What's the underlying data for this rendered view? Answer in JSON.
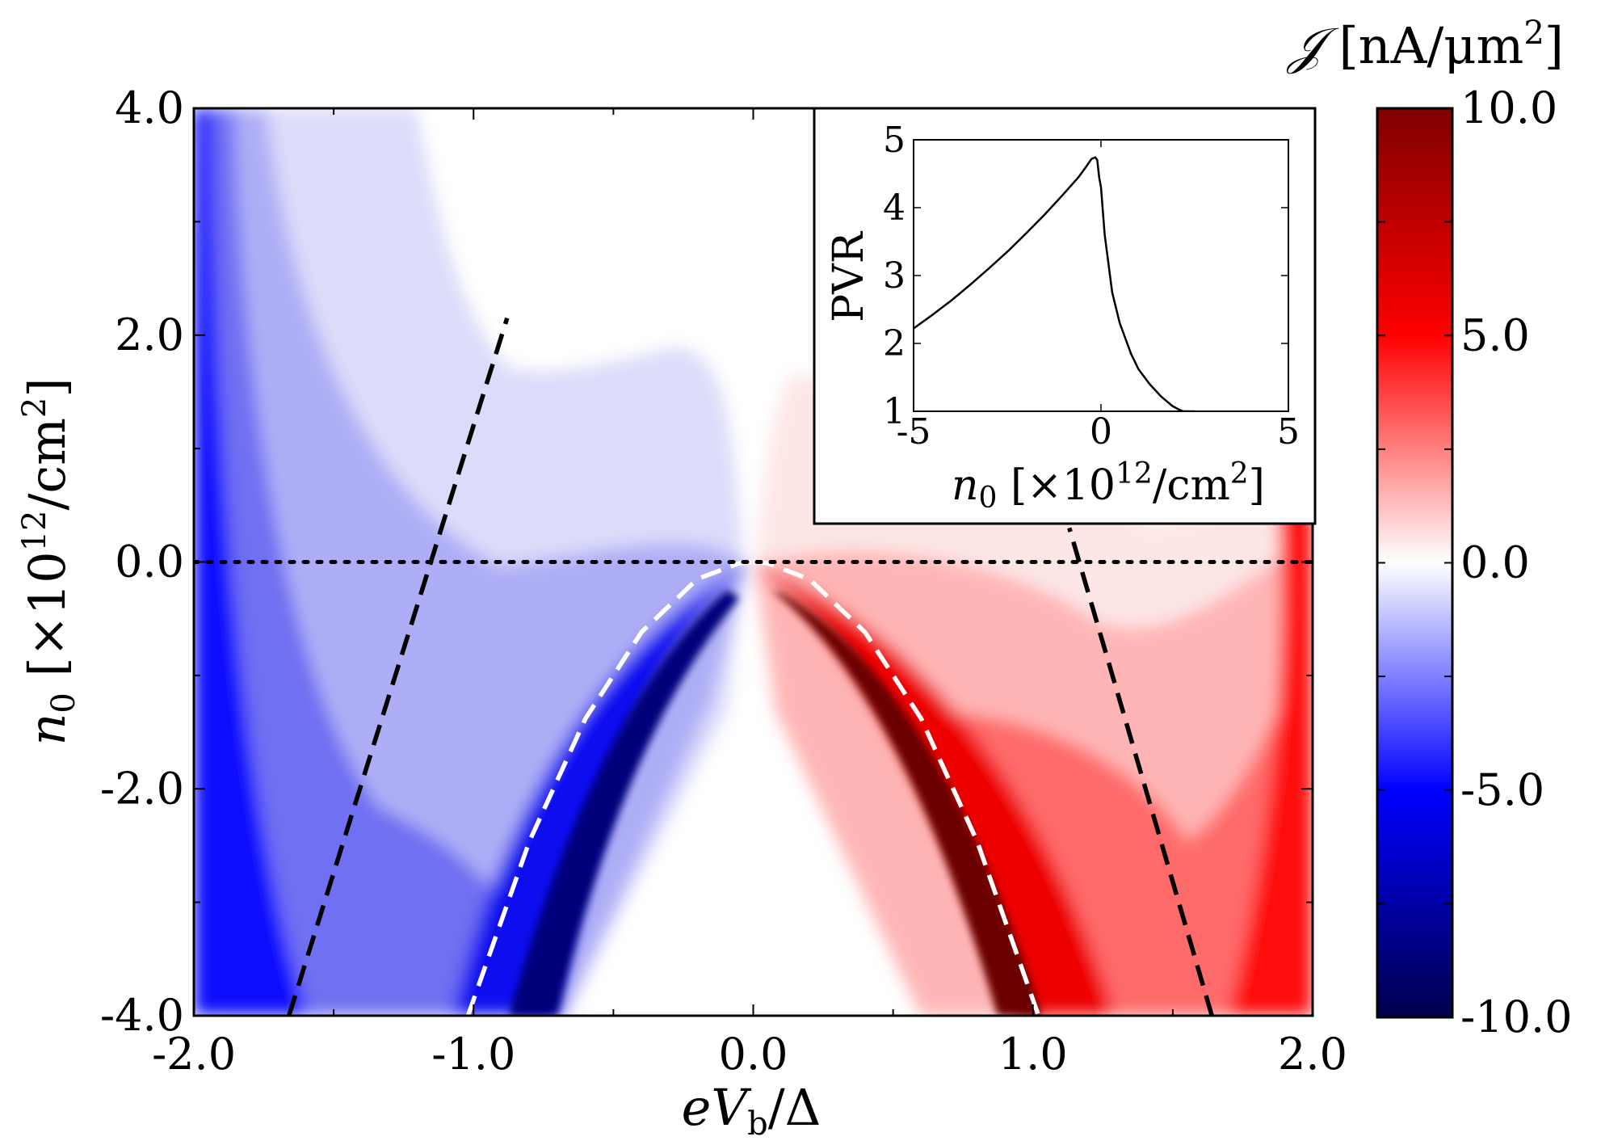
{
  "chart_data": [
    {
      "type": "heatmap",
      "title": "",
      "xlabel": "eV_b/Δ",
      "xlabel_parts": {
        "main": "eV",
        "sub": "b",
        "rest": "/Δ"
      },
      "ylabel_parts": {
        "var": "n",
        "sub": "0",
        "pre": " [×10",
        "sup": "12",
        "post": "/cm",
        "sup2": "2",
        "close": "]"
      },
      "xlim": [
        -2.0,
        2.0
      ],
      "ylim": [
        -4.0,
        4.0
      ],
      "x_ticks": [
        -2.0,
        -1.0,
        0.0,
        1.0,
        2.0
      ],
      "x_tick_labels": [
        "-2.0",
        "-1.0",
        "0.0",
        "1.0",
        "2.0"
      ],
      "y_ticks": [
        -4.0,
        -2.0,
        0.0,
        2.0,
        4.0
      ],
      "y_tick_labels": [
        "-4.0",
        "-2.0",
        "0.0",
        "2.0",
        "4.0"
      ],
      "colorbar": {
        "label_parts": {
          "sym": "𝒥",
          "pre": " [nA/μm",
          "sup": "2",
          "close": "]"
        },
        "range": [
          -10.0,
          10.0
        ],
        "ticks": [
          10.0,
          5.0,
          0.0,
          -5.0,
          -10.0
        ],
        "tick_labels": [
          "10.0",
          "5.0",
          "0.0",
          "-5.0",
          "-10.0"
        ],
        "colormap": "seismic",
        "colors": {
          "low": "#00004c",
          "mid_low": "#0000ff",
          "zero": "#ffffff",
          "mid_high": "#ff0000",
          "high": "#800000"
        }
      },
      "overlay_lines": [
        {
          "name": "black-dashed-left",
          "style": "dashed",
          "color": "#000000",
          "x": [
            -1.66,
            -0.88
          ],
          "y": [
            -4.0,
            2.15
          ]
        },
        {
          "name": "black-dashed-right",
          "style": "dashed",
          "color": "#000000",
          "x": [
            1.64,
            1.13
          ],
          "y": [
            -4.0,
            0.3
          ]
        },
        {
          "name": "white-dashed-left",
          "style": "dashed",
          "color": "#ffffff",
          "x": [
            -1.02,
            -0.8,
            -0.6,
            -0.4,
            -0.2,
            -0.05,
            0.0
          ],
          "y": [
            -4.0,
            -2.46,
            -1.38,
            -0.62,
            -0.15,
            -0.01,
            0.0
          ]
        },
        {
          "name": "white-dashed-right",
          "style": "dashed",
          "color": "#ffffff",
          "x": [
            0.0,
            0.05,
            0.2,
            0.4,
            0.6,
            0.8,
            1.02
          ],
          "y": [
            0.0,
            -0.01,
            -0.15,
            -0.62,
            -1.38,
            -2.46,
            -4.0
          ]
        },
        {
          "name": "zero-dotted",
          "style": "dotted",
          "color": "#000000",
          "x": [
            -2.0,
            2.0
          ],
          "y": [
            0.0,
            0.0
          ]
        }
      ]
    },
    {
      "type": "line",
      "role": "inset",
      "xlabel_parts": {
        "var": "n",
        "sub": "0",
        "pre": " [×10",
        "sup": "12",
        "post": "/cm",
        "sup2": "2",
        "close": "]"
      },
      "ylabel": "PVR",
      "xlim": [
        -5,
        5
      ],
      "ylim": [
        1,
        5
      ],
      "x_ticks": [
        -5,
        0,
        5
      ],
      "x_tick_labels": [
        "-5",
        "0",
        "5"
      ],
      "y_ticks": [
        1,
        2,
        3,
        4,
        5
      ],
      "y_tick_labels": [
        "1",
        "2",
        "3",
        "4",
        "5"
      ],
      "series": [
        {
          "name": "PVR",
          "x": [
            -5.0,
            -4.5,
            -4.0,
            -3.5,
            -3.0,
            -2.5,
            -2.0,
            -1.5,
            -1.0,
            -0.6,
            -0.4,
            -0.25,
            -0.15,
            -0.1,
            -0.05,
            0.0,
            0.1,
            0.3,
            0.5,
            0.8,
            1.0,
            1.3,
            1.6,
            1.9,
            2.1,
            2.2,
            2.5
          ],
          "y": [
            2.22,
            2.42,
            2.63,
            2.86,
            3.1,
            3.35,
            3.62,
            3.9,
            4.2,
            4.45,
            4.6,
            4.72,
            4.74,
            4.7,
            4.45,
            4.3,
            3.6,
            2.75,
            2.3,
            1.85,
            1.62,
            1.4,
            1.22,
            1.08,
            1.02,
            1.0,
            1.0
          ]
        }
      ]
    }
  ]
}
